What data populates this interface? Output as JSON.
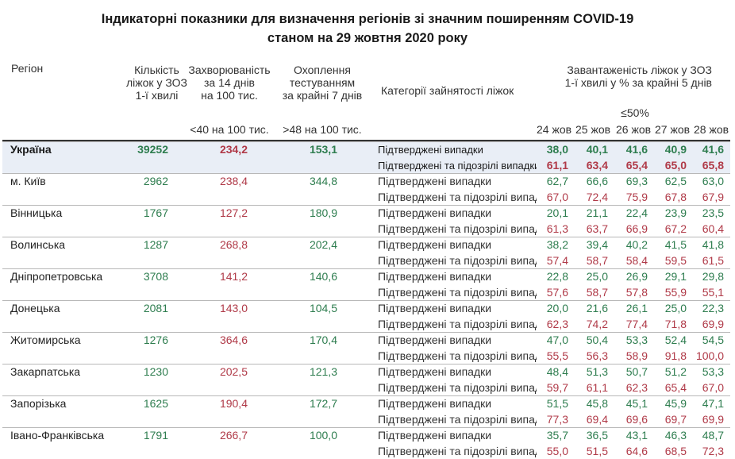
{
  "title_line1": "Індикаторні показники для визначення регіонів зі значним поширенням COVID-19",
  "title_line2": "станом на 29 жовтня 2020 року",
  "headers": {
    "region": "Регіон",
    "beds": [
      "Кількість",
      "ліжок у ЗОЗ",
      "1-ї хвилі"
    ],
    "incidence": [
      "Захворюваність",
      "за 14 днів",
      "на 100 тис."
    ],
    "testing": [
      "Охоплення",
      "тестуванням",
      "за крайні 7 днів"
    ],
    "category": "Категорії зайнятості ліжок",
    "occupancy": [
      "Завантаженість ліжок у ЗОЗ",
      "1-ї хвилі у % за крайні 5 днів"
    ],
    "incidence_threshold": "<40 на 100 тис.",
    "testing_threshold": ">48 на 100 тис.",
    "occupancy_threshold": "≤50%",
    "days": [
      "24 жов",
      "25 жов",
      "26 жов",
      "27 жов",
      "28 жов"
    ]
  },
  "categories": {
    "confirmed": "Підтверджені випадки",
    "suspected": "Підтверджені та підозрілі випадки"
  },
  "colors": {
    "green": "#2e7d4f",
    "red": "#b03a48",
    "ukraine_bg": "#e9eef6"
  },
  "rows": [
    {
      "region": "Україна",
      "beds": "39252",
      "incidence": "234,2",
      "testing": "153,1",
      "confirmed": [
        "38,0",
        "40,1",
        "41,6",
        "40,9",
        "41,6"
      ],
      "suspected": [
        "61,1",
        "63,4",
        "65,4",
        "65,0",
        "65,8"
      ]
    },
    {
      "region": "м. Київ",
      "beds": "2962",
      "incidence": "238,4",
      "testing": "344,8",
      "confirmed": [
        "62,7",
        "66,6",
        "69,3",
        "62,5",
        "63,0"
      ],
      "suspected": [
        "67,0",
        "72,4",
        "75,9",
        "67,8",
        "67,9"
      ]
    },
    {
      "region": "Вінницька",
      "beds": "1767",
      "incidence": "127,2",
      "testing": "180,9",
      "confirmed": [
        "20,1",
        "21,1",
        "22,4",
        "23,9",
        "23,5"
      ],
      "suspected": [
        "61,3",
        "63,7",
        "66,9",
        "67,2",
        "60,4"
      ]
    },
    {
      "region": "Волинська",
      "beds": "1287",
      "incidence": "268,8",
      "testing": "202,4",
      "confirmed": [
        "38,2",
        "39,4",
        "40,2",
        "41,5",
        "41,8"
      ],
      "suspected": [
        "57,4",
        "58,7",
        "58,4",
        "59,5",
        "61,5"
      ]
    },
    {
      "region": "Дніпропетровська",
      "beds": "3708",
      "incidence": "141,2",
      "testing": "140,6",
      "confirmed": [
        "22,8",
        "25,0",
        "26,9",
        "29,1",
        "29,8"
      ],
      "suspected": [
        "57,6",
        "58,7",
        "57,8",
        "55,9",
        "55,1"
      ]
    },
    {
      "region": "Донецька",
      "beds": "2081",
      "incidence": "143,0",
      "testing": "104,5",
      "confirmed": [
        "20,0",
        "21,6",
        "26,1",
        "25,0",
        "22,3"
      ],
      "suspected": [
        "62,3",
        "74,2",
        "77,4",
        "71,8",
        "69,9"
      ]
    },
    {
      "region": "Житомирська",
      "beds": "1276",
      "incidence": "364,6",
      "testing": "170,4",
      "confirmed": [
        "47,0",
        "50,4",
        "53,3",
        "52,4",
        "54,5"
      ],
      "suspected": [
        "55,5",
        "56,3",
        "58,9",
        "91,8",
        "100,0"
      ]
    },
    {
      "region": "Закарпатська",
      "beds": "1230",
      "incidence": "202,5",
      "testing": "121,3",
      "confirmed": [
        "48,4",
        "51,3",
        "50,7",
        "51,2",
        "53,3"
      ],
      "suspected": [
        "59,7",
        "61,1",
        "62,3",
        "65,4",
        "67,0"
      ]
    },
    {
      "region": "Запорізька",
      "beds": "1625",
      "incidence": "190,4",
      "testing": "172,7",
      "confirmed": [
        "51,5",
        "45,8",
        "45,1",
        "45,9",
        "47,1"
      ],
      "suspected": [
        "77,3",
        "69,4",
        "69,6",
        "69,7",
        "69,9"
      ]
    },
    {
      "region": "Івано-Франківська",
      "beds": "1791",
      "incidence": "266,7",
      "testing": "100,0",
      "confirmed": [
        "35,7",
        "36,5",
        "43,1",
        "46,3",
        "48,7"
      ],
      "suspected": [
        "55,0",
        "51,5",
        "64,6",
        "68,5",
        "72,3"
      ]
    }
  ]
}
